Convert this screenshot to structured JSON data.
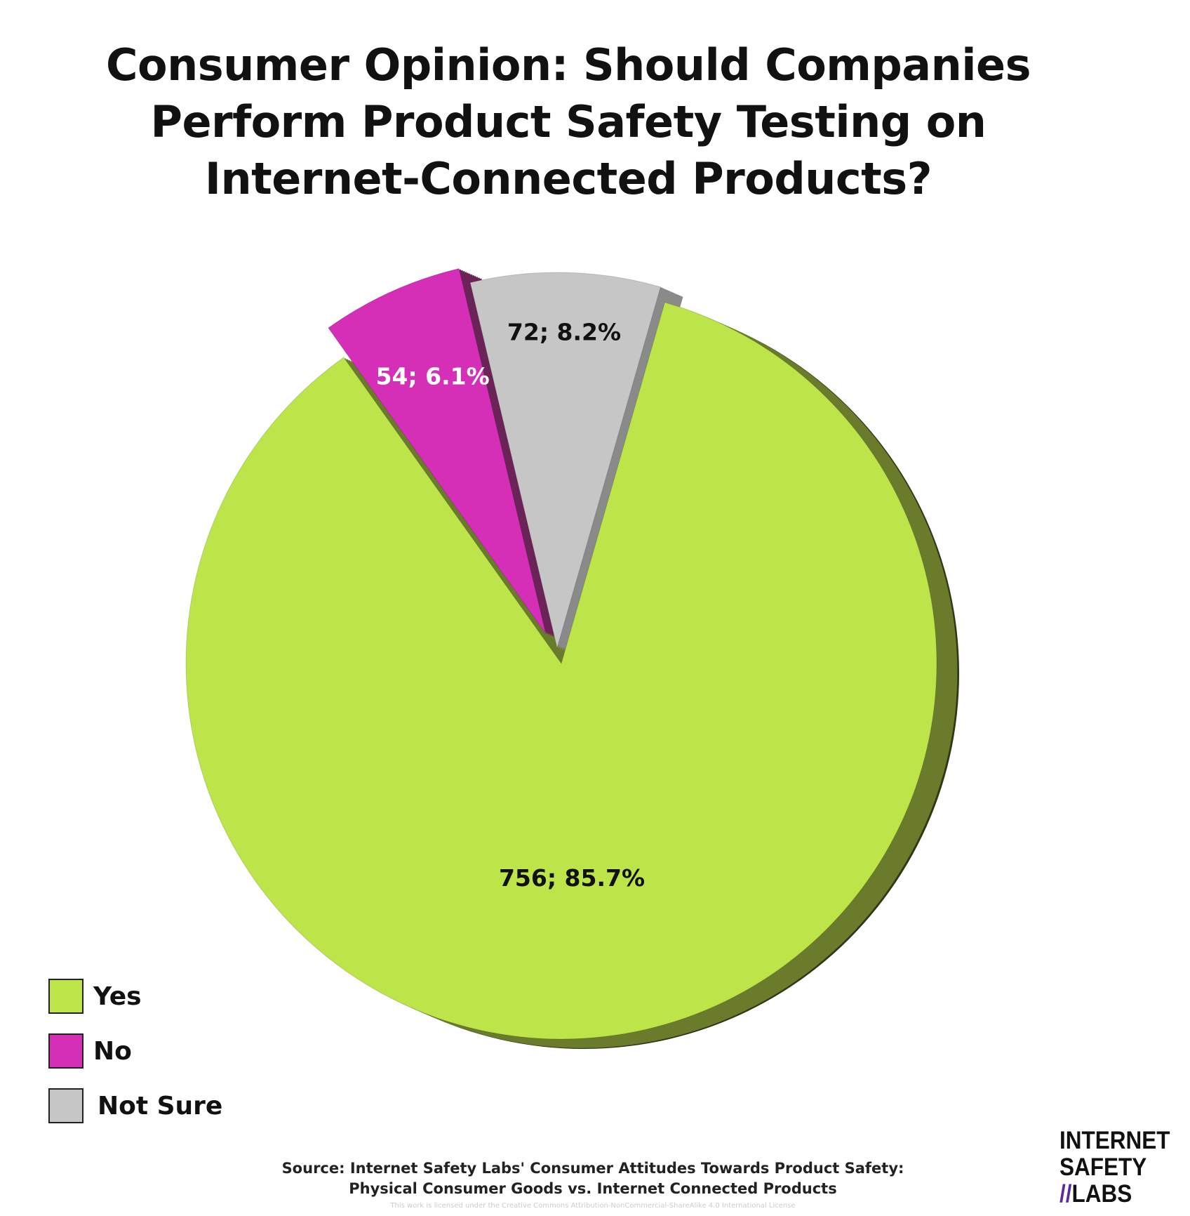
{
  "chart_data": {
    "type": "pie",
    "title": "Consumer Opinion: Should Companies Perform Product Safety Testing on Internet-Connected Products?",
    "title_lines": [
      "Consumer Opinion: Should Companies",
      "Perform Product Safety Testing on",
      "Internet-Connected Products?"
    ],
    "slices": [
      {
        "label": "Yes",
        "value": 756,
        "percent": 85.7,
        "data_label": "756; 85.7%",
        "color": "#bde54a",
        "side_color": "#6a7c2c",
        "text_color": "#111111"
      },
      {
        "label": "No",
        "value": 54,
        "percent": 6.1,
        "data_label": "54; 6.1%",
        "color": "#d42fb6",
        "side_color": "#6b2358",
        "text_color": "#ffffff"
      },
      {
        "label": "Not Sure",
        "value": 72,
        "percent": 8.2,
        "data_label": "72; 8.2%",
        "color": "#c6c6c6",
        "side_color": "#8a8a8a",
        "text_color": "#111111"
      }
    ],
    "legend_position": "bottom-left"
  },
  "footer": {
    "source_line1": "Source: Internet Safety Labs' Consumer Attitudes Towards Product Safety:",
    "source_line2": "Physical Consumer Goods vs. Internet Connected Products",
    "license": "This work is licensed under the Creative Commons Attribution-NonCommercial-ShareAlike 4.0 International License"
  },
  "logo": {
    "line1": "INTERNET",
    "line2": "SAFETY",
    "line3_slash": "//",
    "line3": "LABS"
  }
}
